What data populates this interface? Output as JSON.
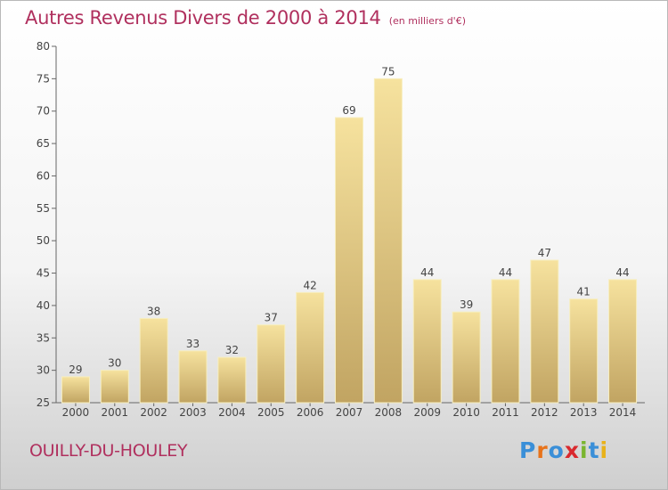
{
  "title": "Autres Revenus Divers de 2000 à 2014",
  "unit_note": "(en milliers d'€)",
  "commune": "OUILLY-DU-HOULEY",
  "brand": {
    "text": "Proxiti",
    "letters": [
      {
        "ch": "P",
        "color": "#3a8fd8"
      },
      {
        "ch": "r",
        "color": "#e8731a"
      },
      {
        "ch": "o",
        "color": "#3a8fd8"
      },
      {
        "ch": "x",
        "color": "#d9292e"
      },
      {
        "ch": "i",
        "color": "#7ab52f"
      },
      {
        "ch": "t",
        "color": "#3a8fd8"
      },
      {
        "ch": "i",
        "color": "#e8b21a"
      }
    ]
  },
  "colors": {
    "bar_top": "#f6e29e",
    "bar_bottom": "#c1a462",
    "title": "#b0305e"
  },
  "chart_data": {
    "type": "bar",
    "title": "Autres Revenus Divers de 2000 à 2014",
    "subtitle": "(en milliers d'€)",
    "xlabel": "",
    "ylabel": "",
    "categories": [
      "2000",
      "2001",
      "2002",
      "2003",
      "2004",
      "2005",
      "2006",
      "2007",
      "2008",
      "2009",
      "2010",
      "2011",
      "2012",
      "2013",
      "2014"
    ],
    "values": [
      29,
      30,
      38,
      33,
      32,
      37,
      42,
      69,
      75,
      44,
      39,
      44,
      47,
      41,
      44
    ],
    "ylim": [
      25,
      80
    ],
    "yticks": [
      25,
      30,
      35,
      40,
      45,
      50,
      55,
      60,
      65,
      70,
      75,
      80
    ],
    "grid": false,
    "legend": "none"
  }
}
